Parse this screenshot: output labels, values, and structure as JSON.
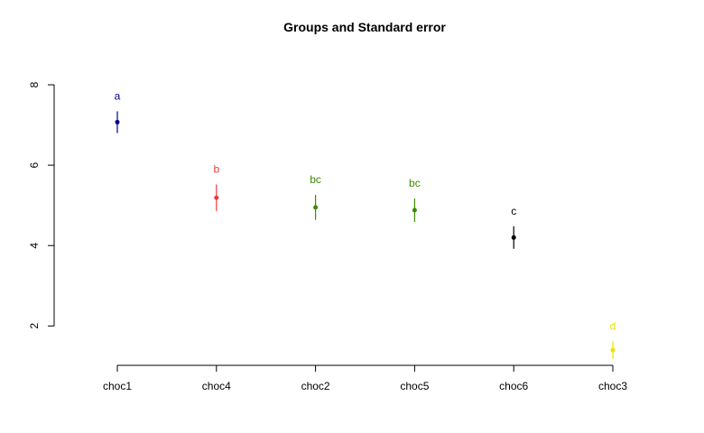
{
  "chart_data": {
    "type": "scatter",
    "title": "Groups and Standard error",
    "xlabel": "",
    "ylabel": "",
    "categories": [
      "choc1",
      "choc4",
      "choc2",
      "choc5",
      "choc6",
      "choc3"
    ],
    "points": [
      {
        "category": "choc1",
        "mean": 7.07,
        "se": 0.27,
        "group": "a",
        "color": "#00008b"
      },
      {
        "category": "choc4",
        "mean": 5.19,
        "se": 0.33,
        "group": "b",
        "color": "#ef3b3b"
      },
      {
        "category": "choc2",
        "mean": 4.95,
        "se": 0.31,
        "group": "bc",
        "color": "#3a8c00"
      },
      {
        "category": "choc5",
        "mean": 4.88,
        "se": 0.29,
        "group": "bc",
        "color": "#3a8c00"
      },
      {
        "category": "choc6",
        "mean": 4.2,
        "se": 0.28,
        "group": "c",
        "color": "#000000"
      },
      {
        "category": "choc3",
        "mean": 1.4,
        "se": 0.22,
        "group": "d",
        "color": "#e5e500"
      }
    ],
    "ylim": [
      1.02,
      8.0
    ],
    "yticks": [
      2,
      4,
      6,
      8
    ],
    "grid": false,
    "legend": "none"
  }
}
